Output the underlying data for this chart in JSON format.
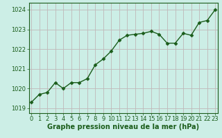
{
  "x": [
    0,
    1,
    2,
    3,
    4,
    5,
    6,
    7,
    8,
    9,
    10,
    11,
    12,
    13,
    14,
    15,
    16,
    17,
    18,
    19,
    20,
    21,
    22,
    23
  ],
  "y": [
    1019.3,
    1019.7,
    1019.8,
    1020.3,
    1020.0,
    1020.3,
    1020.3,
    1020.5,
    1021.2,
    1021.5,
    1021.9,
    1022.45,
    1022.7,
    1022.75,
    1022.8,
    1022.9,
    1022.75,
    1022.3,
    1022.3,
    1022.8,
    1022.7,
    1023.35,
    1023.45,
    1024.0
  ],
  "line_color": "#1a5c1a",
  "marker": "D",
  "marker_size": 2.5,
  "line_width": 1.0,
  "bg_color": "#cceee6",
  "grid_color": "#c0b8b8",
  "ylabel_ticks": [
    1019,
    1020,
    1021,
    1022,
    1023,
    1024
  ],
  "xlabel_ticks": [
    0,
    1,
    2,
    3,
    4,
    5,
    6,
    7,
    8,
    9,
    10,
    11,
    12,
    13,
    14,
    15,
    16,
    17,
    18,
    19,
    20,
    21,
    22,
    23
  ],
  "xlabel": "Graphe pression niveau de la mer (hPa)",
  "ylim": [
    1018.75,
    1024.35
  ],
  "xlim": [
    -0.3,
    23.3
  ],
  "tick_fontsize": 6,
  "label_fontsize": 7,
  "tick_color": "#1a5c1a",
  "spine_color": "#1a5c1a",
  "label_fontweight": "bold"
}
